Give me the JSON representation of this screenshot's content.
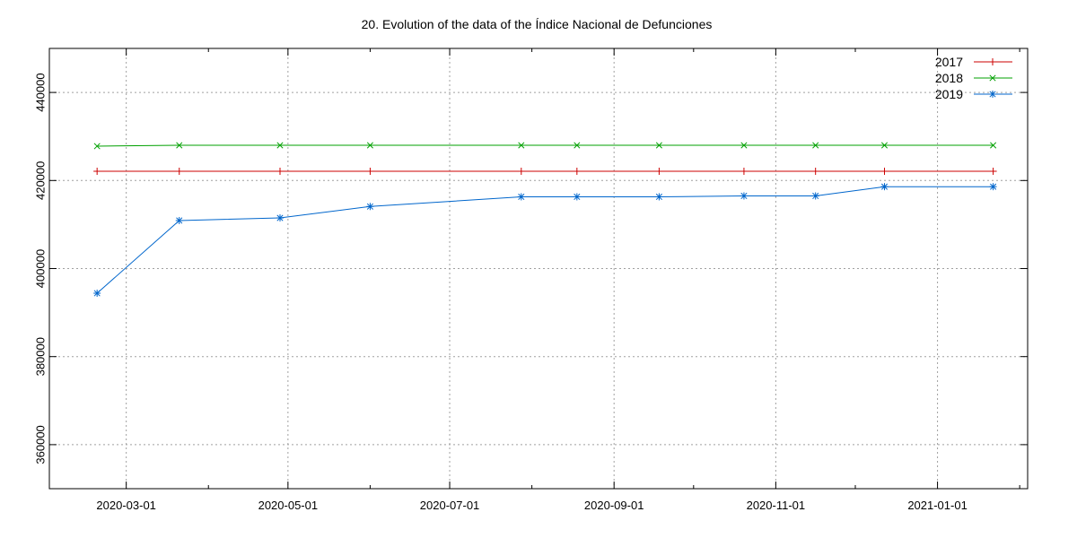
{
  "chart_data": {
    "type": "line",
    "title": "20. Evolution of the data of the Índice Nacional de Defunciones",
    "xlabel": "",
    "ylabel": "",
    "x_type": "date",
    "xlim": [
      "2020-02-01",
      "2021-02-04"
    ],
    "ylim": [
      350000,
      450000
    ],
    "x_ticks": [
      "2020-03-01",
      "2020-05-01",
      "2020-07-01",
      "2020-09-01",
      "2020-11-01",
      "2021-01-01"
    ],
    "y_ticks": [
      360000,
      380000,
      400000,
      420000,
      440000
    ],
    "grid": true,
    "legend_position": "top-right",
    "x": [
      "2020-02-19",
      "2020-03-21",
      "2020-04-28",
      "2020-06-01",
      "2020-07-28",
      "2020-08-18",
      "2020-09-18",
      "2020-10-20",
      "2020-11-16",
      "2020-12-12",
      "2021-01-22"
    ],
    "series": [
      {
        "name": "2017",
        "color": "#cc0000",
        "marker": "plus",
        "values": [
          422100,
          422100,
          422100,
          422100,
          422100,
          422100,
          422100,
          422100,
          422100,
          422100,
          422100
        ]
      },
      {
        "name": "2018",
        "color": "#00a000",
        "marker": "cross",
        "values": [
          427800,
          428000,
          428000,
          428000,
          428000,
          428000,
          428000,
          428000,
          428000,
          428000,
          428000
        ]
      },
      {
        "name": "2019",
        "color": "#0066cc",
        "marker": "star",
        "values": [
          394400,
          410900,
          411500,
          414100,
          416300,
          416300,
          416300,
          416500,
          416500,
          418600,
          418600
        ]
      }
    ]
  }
}
